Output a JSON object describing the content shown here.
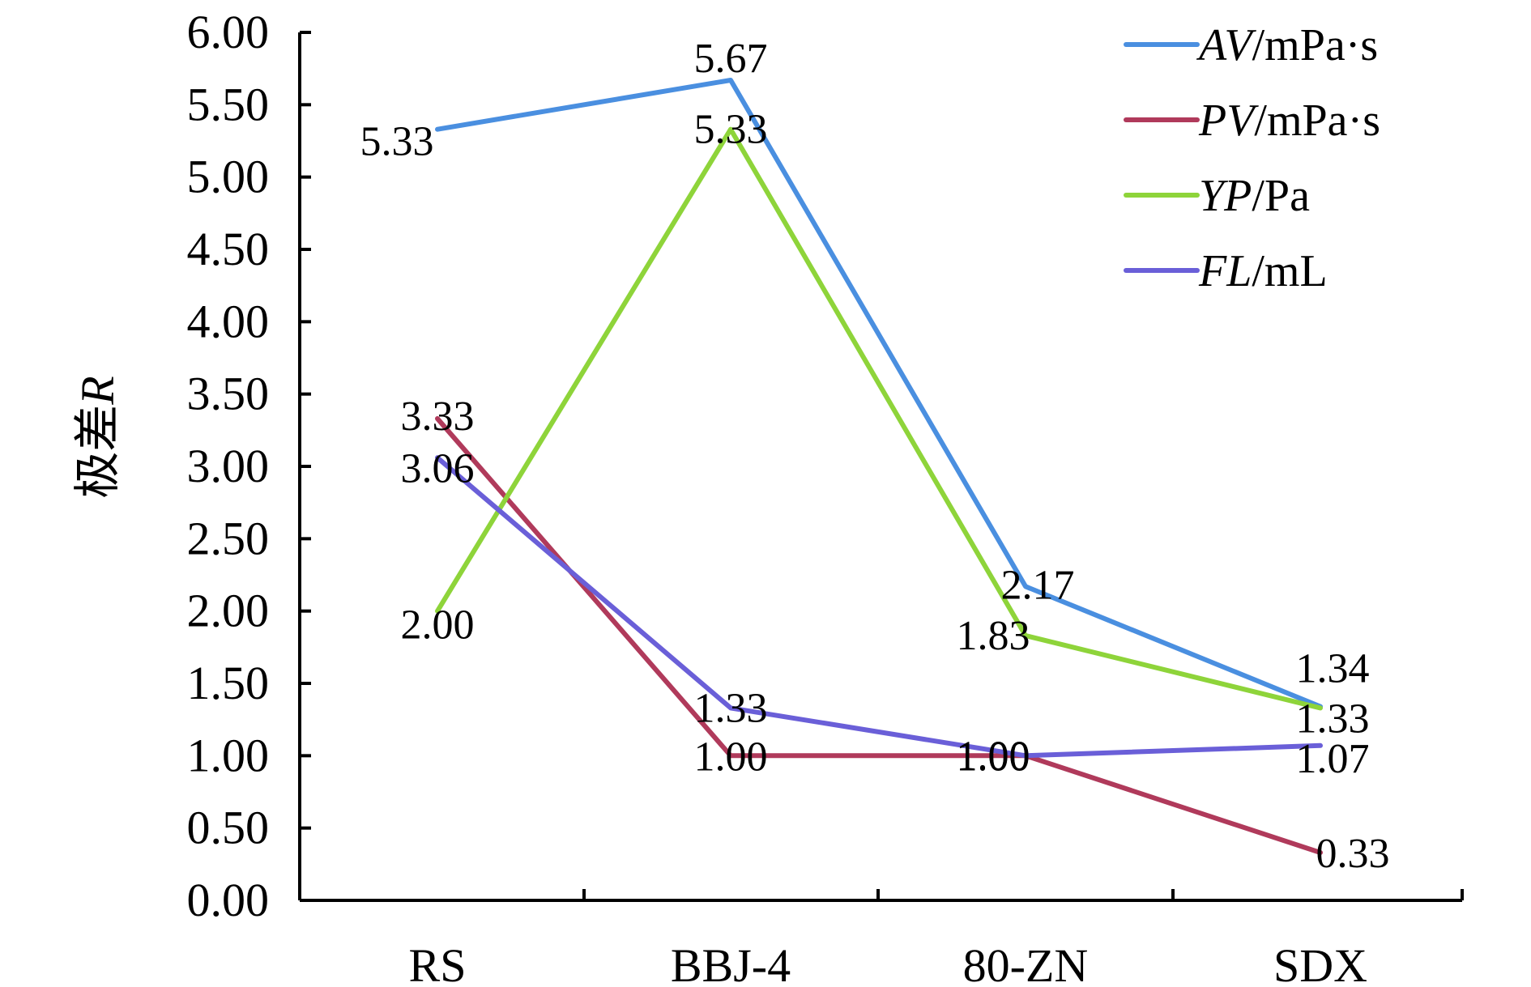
{
  "chart_data": {
    "type": "line",
    "categories": [
      "RS",
      "BBJ-4",
      "80-ZN",
      "SDX"
    ],
    "ylabel": {
      "prefix": "极差",
      "var": "R"
    },
    "ylim": [
      0,
      6
    ],
    "ytick_step": 0.5,
    "ytick_labels": [
      "0.00",
      "0.50",
      "1.00",
      "1.50",
      "2.00",
      "2.50",
      "3.00",
      "3.50",
      "4.00",
      "4.50",
      "5.00",
      "5.50",
      "6.00"
    ],
    "grid": false,
    "legend_position": "top-right",
    "series": [
      {
        "key": "av",
        "legend_var": "AV",
        "legend_unit": "/mPa·s",
        "color": "#4a8fe0",
        "values": [
          5.33,
          5.67,
          2.17,
          1.34
        ],
        "labels": [
          "5.33",
          "5.67",
          "2.17",
          "1.34"
        ]
      },
      {
        "key": "pv",
        "legend_var": "PV",
        "legend_unit": "/mPa·s",
        "color": "#b03a5b",
        "values": [
          3.33,
          1.0,
          1.0,
          0.33
        ],
        "labels": [
          "3.33",
          "1.00",
          "1.00",
          "0.33"
        ]
      },
      {
        "key": "yp",
        "legend_var": "YP",
        "legend_unit": "/Pa",
        "color": "#8ed43a",
        "values": [
          2.0,
          5.33,
          1.83,
          1.33
        ],
        "labels": [
          "2.00",
          "5.33",
          "1.83",
          "1.33"
        ]
      },
      {
        "key": "fl",
        "legend_var": "FL",
        "legend_unit": "/mL",
        "color": "#6a5fd8",
        "values": [
          3.06,
          1.33,
          1.0,
          1.07
        ],
        "labels": [
          "3.06",
          "1.33",
          "1.00",
          "1.07"
        ]
      }
    ]
  }
}
